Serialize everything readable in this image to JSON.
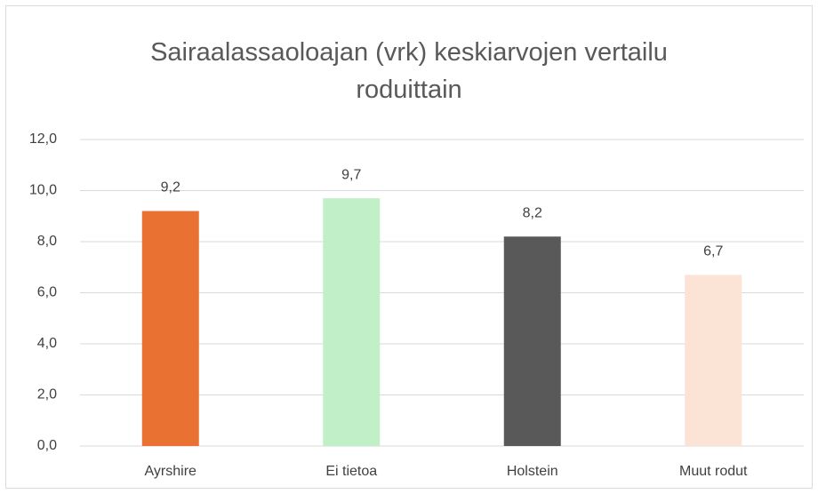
{
  "chart_data": {
    "type": "bar",
    "title": "Sairaalassaoloajan (vrk) keskiarvojen vertailu roduittain",
    "categories": [
      "Ayrshire",
      "Ei tietoa",
      "Holstein",
      "Muut rodut"
    ],
    "values": [
      9.2,
      9.7,
      8.2,
      6.7
    ],
    "value_labels": [
      "9,2",
      "9,7",
      "8,2",
      "6,7"
    ],
    "colors": [
      "#e97132",
      "#c1f0c8",
      "#595959",
      "#fbe3d6"
    ],
    "ylim": [
      0,
      12
    ],
    "yticks": [
      {
        "value": 0,
        "label": "0,0"
      },
      {
        "value": 2,
        "label": "2,0"
      },
      {
        "value": 4,
        "label": "4,0"
      },
      {
        "value": 6,
        "label": "6,0"
      },
      {
        "value": 8,
        "label": "8,0"
      },
      {
        "value": 10,
        "label": "10,0"
      },
      {
        "value": 12,
        "label": "12,0"
      }
    ],
    "grid": true
  }
}
